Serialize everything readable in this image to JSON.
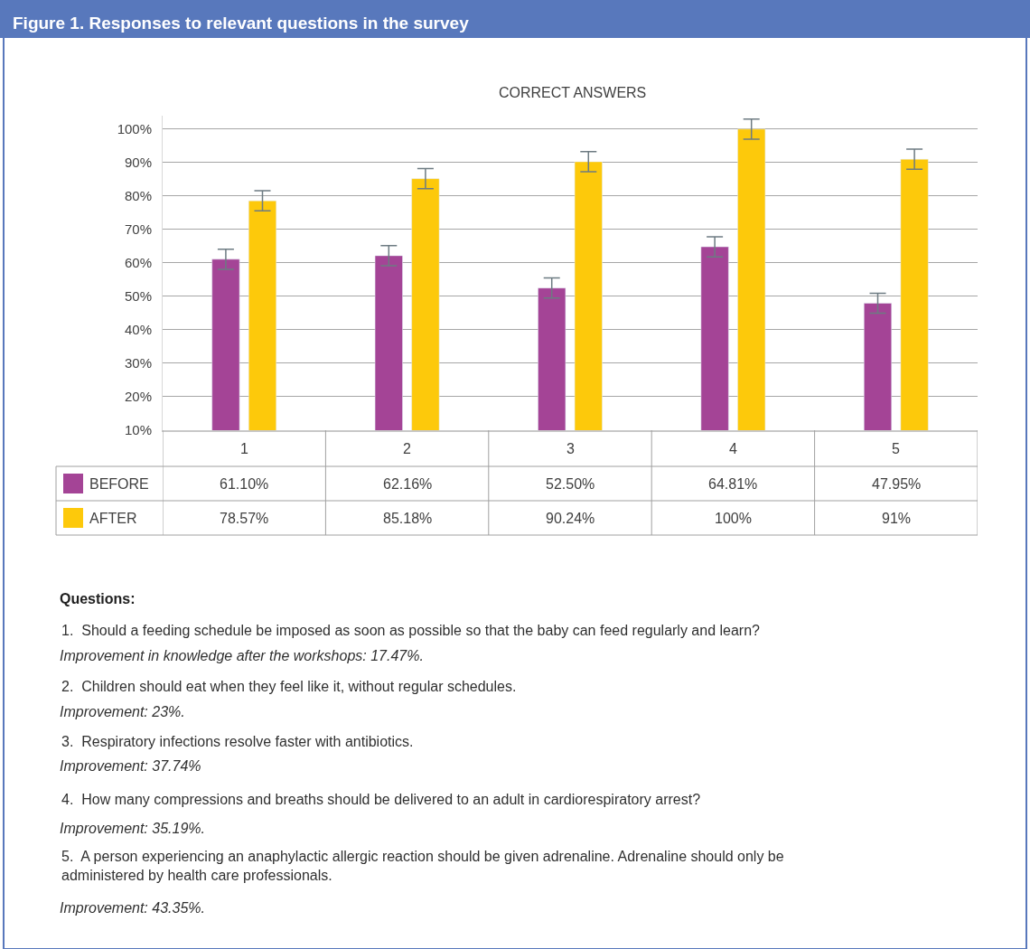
{
  "chart_data": {
    "type": "bar",
    "title": "Figure 1. Responses to relevant questions in the survey",
    "subtitle": "CORRECT ANSWERS",
    "categories": [
      "1",
      "2",
      "3",
      "4",
      "5"
    ],
    "series": [
      {
        "name": "BEFORE",
        "color": "#a44496",
        "values": [
          61.1,
          62.16,
          52.5,
          64.81,
          47.95
        ],
        "errors": [
          3,
          3,
          3,
          3,
          3
        ],
        "value_labels": [
          "61.10%",
          "62.16%",
          "52.50%",
          "64.81%",
          "47.95%"
        ]
      },
      {
        "name": "AFTER",
        "color": "#fdc90b",
        "values": [
          78.57,
          85.18,
          90.24,
          100,
          91
        ],
        "errors": [
          3,
          3,
          3,
          3,
          3
        ],
        "value_labels": [
          "78.57%",
          "85.18%",
          "90.24%",
          "100%",
          "91%"
        ]
      }
    ],
    "ylim": [
      10,
      104
    ],
    "yticks": [
      {
        "value": 10,
        "label": "10%"
      },
      {
        "value": 20,
        "label": "20%"
      },
      {
        "value": 30,
        "label": "30%"
      },
      {
        "value": 40,
        "label": "40%"
      },
      {
        "value": 50,
        "label": "50%"
      },
      {
        "value": 60,
        "label": "60%"
      },
      {
        "value": 70,
        "label": "70%"
      },
      {
        "value": 80,
        "label": "80%"
      },
      {
        "value": 90,
        "label": "90%"
      },
      {
        "value": 100,
        "label": "100%"
      }
    ],
    "grid": "y",
    "legend": "bottom left",
    "annotations": [
      "Questions:",
      "1.  Should a feeding schedule be imposed as soon as possible so that the baby can feed regularly and learn?",
      "Improvement in knowledge after the workshops: 17.47%.",
      "2.  Children should eat when they feel like it, without regular schedules.",
      "Improvement: 23%.",
      "3.  Respiratory infections resolve faster with antibiotics.",
      "Improvement: 37.74%",
      "4.  How many compressions and breaths should be delivered to an adult in cardiorespiratory arrest?",
      "Improvement: 35.19%.",
      "5.  A person experiencing an anaphylactic allergic reaction should be given adrenaline. Adrenaline should only be administered by health care professionals.",
      "Improvement: 43.35%."
    ]
  }
}
